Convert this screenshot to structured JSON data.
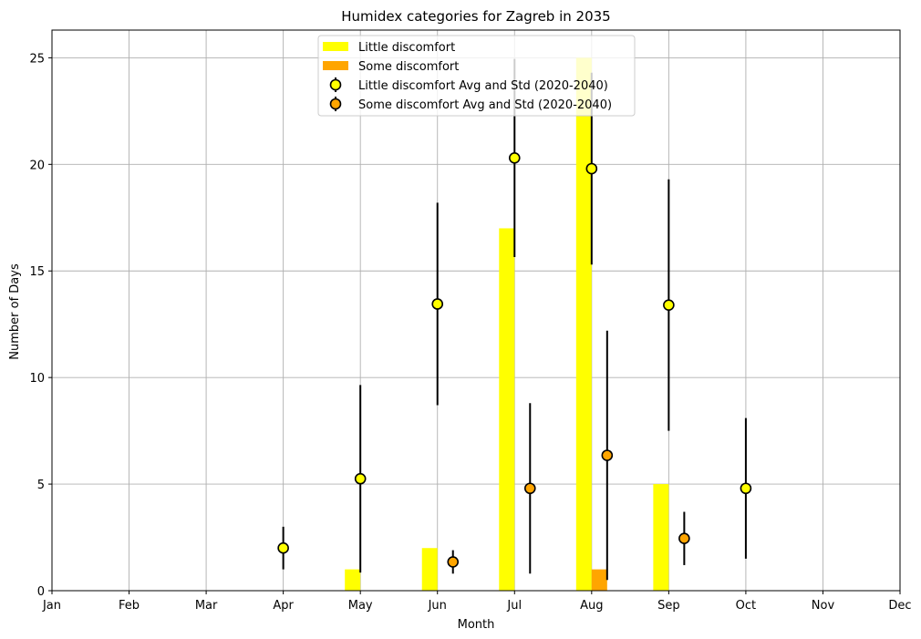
{
  "chart_data": {
    "type": "bar",
    "title": "Humidex categories for Zagreb in 2035",
    "xlabel": "Month",
    "ylabel": "Number of Days",
    "categories": [
      "Jan",
      "Feb",
      "Mar",
      "Apr",
      "May",
      "Jun",
      "Jul",
      "Aug",
      "Sep",
      "Oct",
      "Nov",
      "Dec"
    ],
    "ylim": [
      0,
      26.3
    ],
    "yticks": [
      0,
      5,
      10,
      15,
      20,
      25
    ],
    "grid": true,
    "legend_position": "top-center",
    "series": [
      {
        "name": "Little discomfort",
        "kind": "bar",
        "color": "#ffff00",
        "values": [
          0,
          0,
          0,
          0,
          1,
          2,
          17,
          25,
          5,
          0,
          0,
          0
        ]
      },
      {
        "name": "Some discomfort",
        "kind": "bar",
        "color": "#ffa500",
        "values": [
          0,
          0,
          0,
          0,
          0,
          0,
          0,
          1,
          0,
          0,
          0,
          0
        ]
      },
      {
        "name": "Little discomfort Avg and Std (2020-2040)",
        "kind": "errorbar",
        "color": "#ffff00",
        "points": [
          {
            "month": "Apr",
            "avg": 2.0,
            "std": 1.0
          },
          {
            "month": "May",
            "avg": 5.25,
            "std": 4.4
          },
          {
            "month": "Jun",
            "avg": 13.45,
            "std": 4.75
          },
          {
            "month": "Jul",
            "avg": 20.3,
            "std": 4.65
          },
          {
            "month": "Aug",
            "avg": 19.8,
            "std": 4.5
          },
          {
            "month": "Sep",
            "avg": 13.4,
            "std": 5.9
          },
          {
            "month": "Oct",
            "avg": 4.8,
            "std": 3.3
          }
        ]
      },
      {
        "name": "Some discomfort Avg and Std (2020-2040)",
        "kind": "errorbar",
        "color": "#ffa500",
        "points": [
          {
            "month": "Jun",
            "avg": 1.35,
            "std": 0.55
          },
          {
            "month": "Jul",
            "avg": 4.8,
            "std": 4.0
          },
          {
            "month": "Aug",
            "avg": 6.35,
            "std": 5.85
          },
          {
            "month": "Sep",
            "avg": 2.45,
            "std": 1.25
          }
        ]
      }
    ]
  }
}
